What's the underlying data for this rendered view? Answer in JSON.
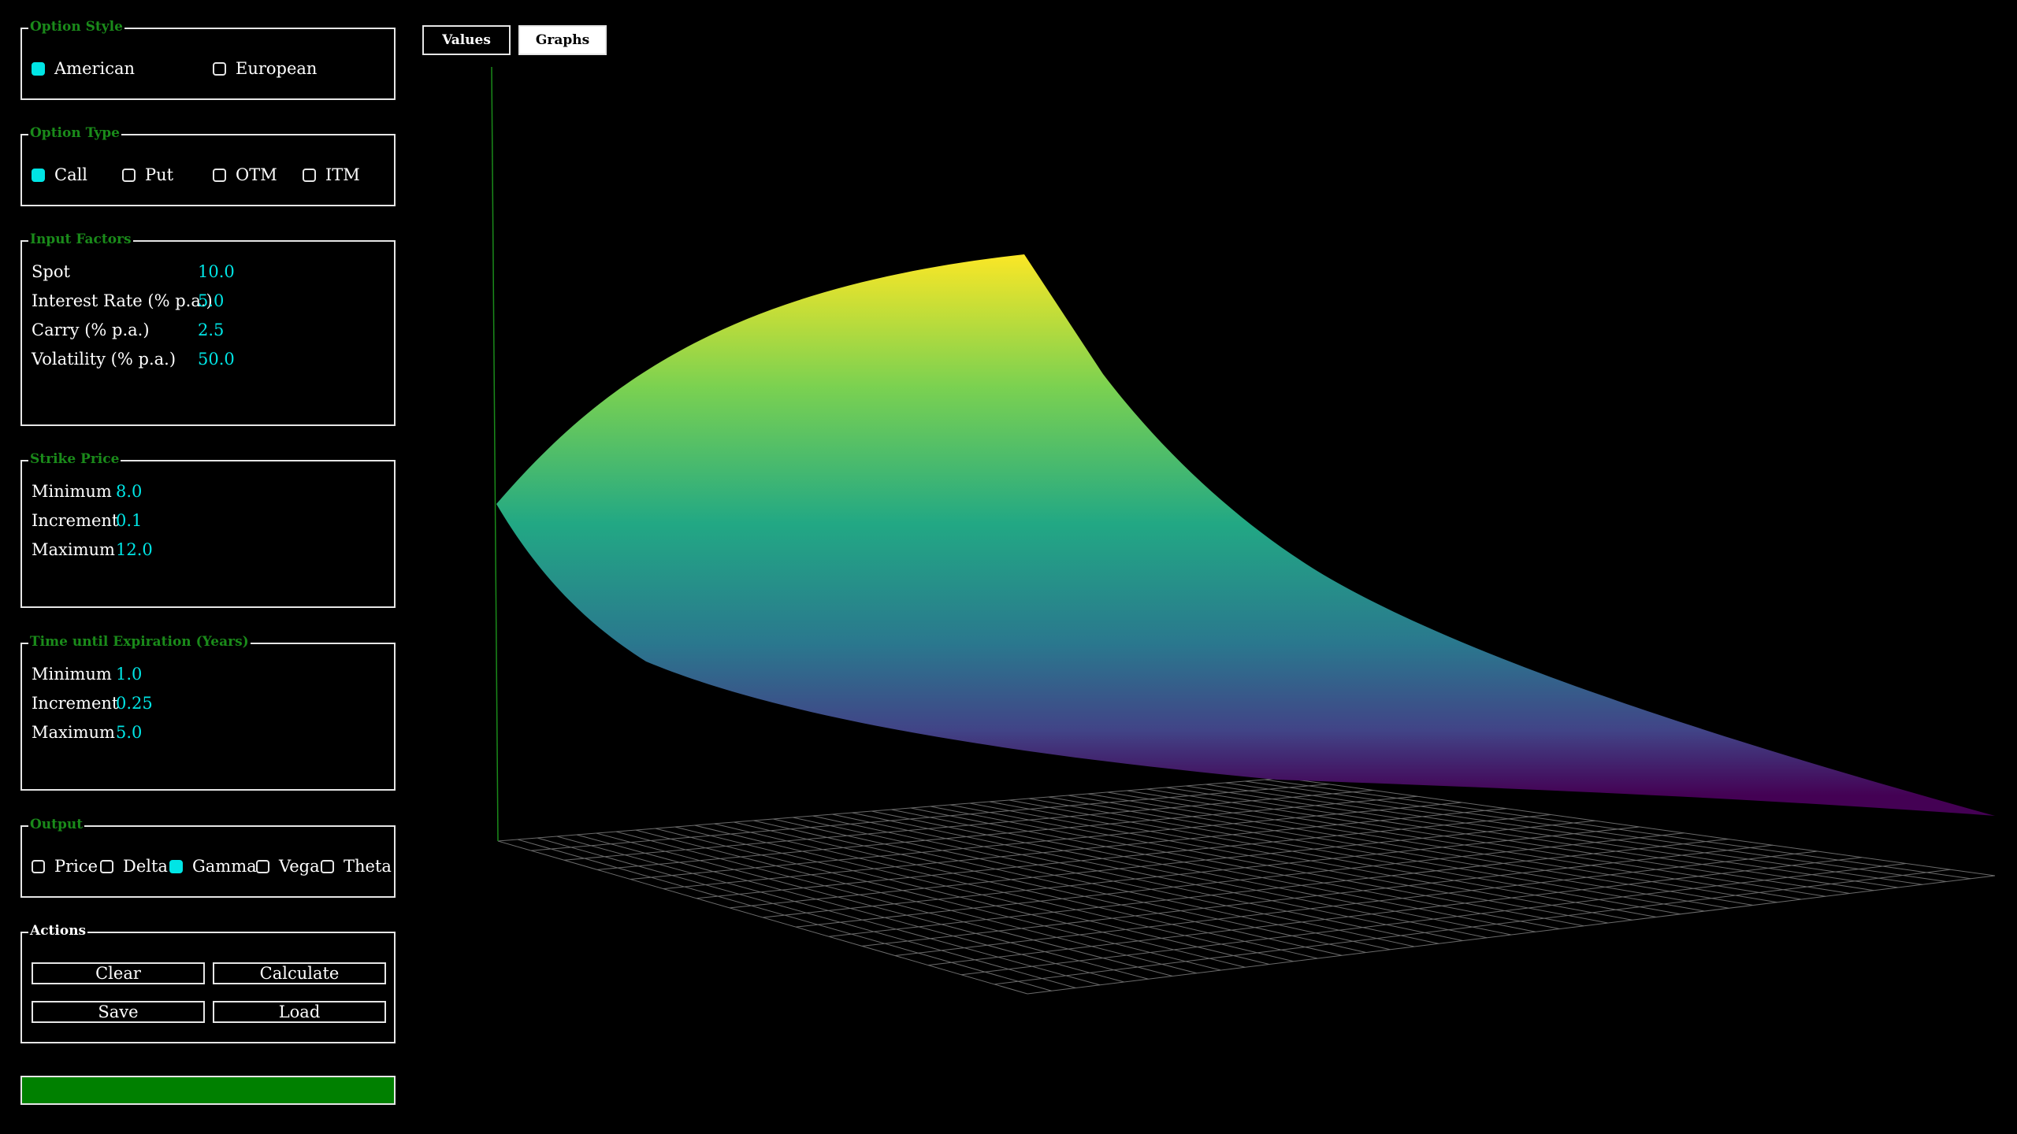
{
  "option_style": {
    "title": "Option Style",
    "options": [
      {
        "label": "American",
        "checked": true
      },
      {
        "label": "European",
        "checked": false
      }
    ]
  },
  "option_type": {
    "title": "Option Type",
    "options": [
      {
        "label": "Call",
        "checked": true
      },
      {
        "label": "Put",
        "checked": false
      },
      {
        "label": "OTM",
        "checked": false
      },
      {
        "label": "ITM",
        "checked": false
      }
    ]
  },
  "input_factors": {
    "title": "Input Factors",
    "rows": [
      {
        "label": "Spot",
        "value": "10.0"
      },
      {
        "label": "Interest Rate (% p.a.)",
        "value": "5.0"
      },
      {
        "label": "Carry (% p.a.)",
        "value": "2.5"
      },
      {
        "label": "Volatility (% p.a.)",
        "value": "50.0"
      }
    ]
  },
  "strike_price": {
    "title": "Strike Price",
    "rows": [
      {
        "label": "Minimum",
        "value": "8.0"
      },
      {
        "label": "Increment",
        "value": "0.1"
      },
      {
        "label": "Maximum",
        "value": "12.0"
      }
    ]
  },
  "time_to_expiry": {
    "title": "Time until Expiration (Years)",
    "rows": [
      {
        "label": "Minimum",
        "value": "1.0"
      },
      {
        "label": "Increment",
        "value": "0.25"
      },
      {
        "label": "Maximum",
        "value": "5.0"
      }
    ]
  },
  "output": {
    "title": "Output",
    "options": [
      {
        "label": "Price",
        "checked": false
      },
      {
        "label": "Delta",
        "checked": false
      },
      {
        "label": "Gamma",
        "checked": true
      },
      {
        "label": "Vega",
        "checked": false
      },
      {
        "label": "Theta",
        "checked": false
      }
    ]
  },
  "actions": {
    "title": "Actions",
    "clear": "Clear",
    "calculate": "Calculate",
    "save": "Save",
    "load": "Load"
  },
  "progress": {
    "fraction": 1.0,
    "color": "#008000"
  },
  "tabs": [
    {
      "label": "Values",
      "active": false
    },
    {
      "label": "Graphs",
      "active": true
    }
  ],
  "colors": {
    "accent": "#00e5e5",
    "legend": "#1a8a1a",
    "surface_top": "#fde725",
    "surface_mid": "#21918c",
    "surface_bottom": "#440154"
  }
}
